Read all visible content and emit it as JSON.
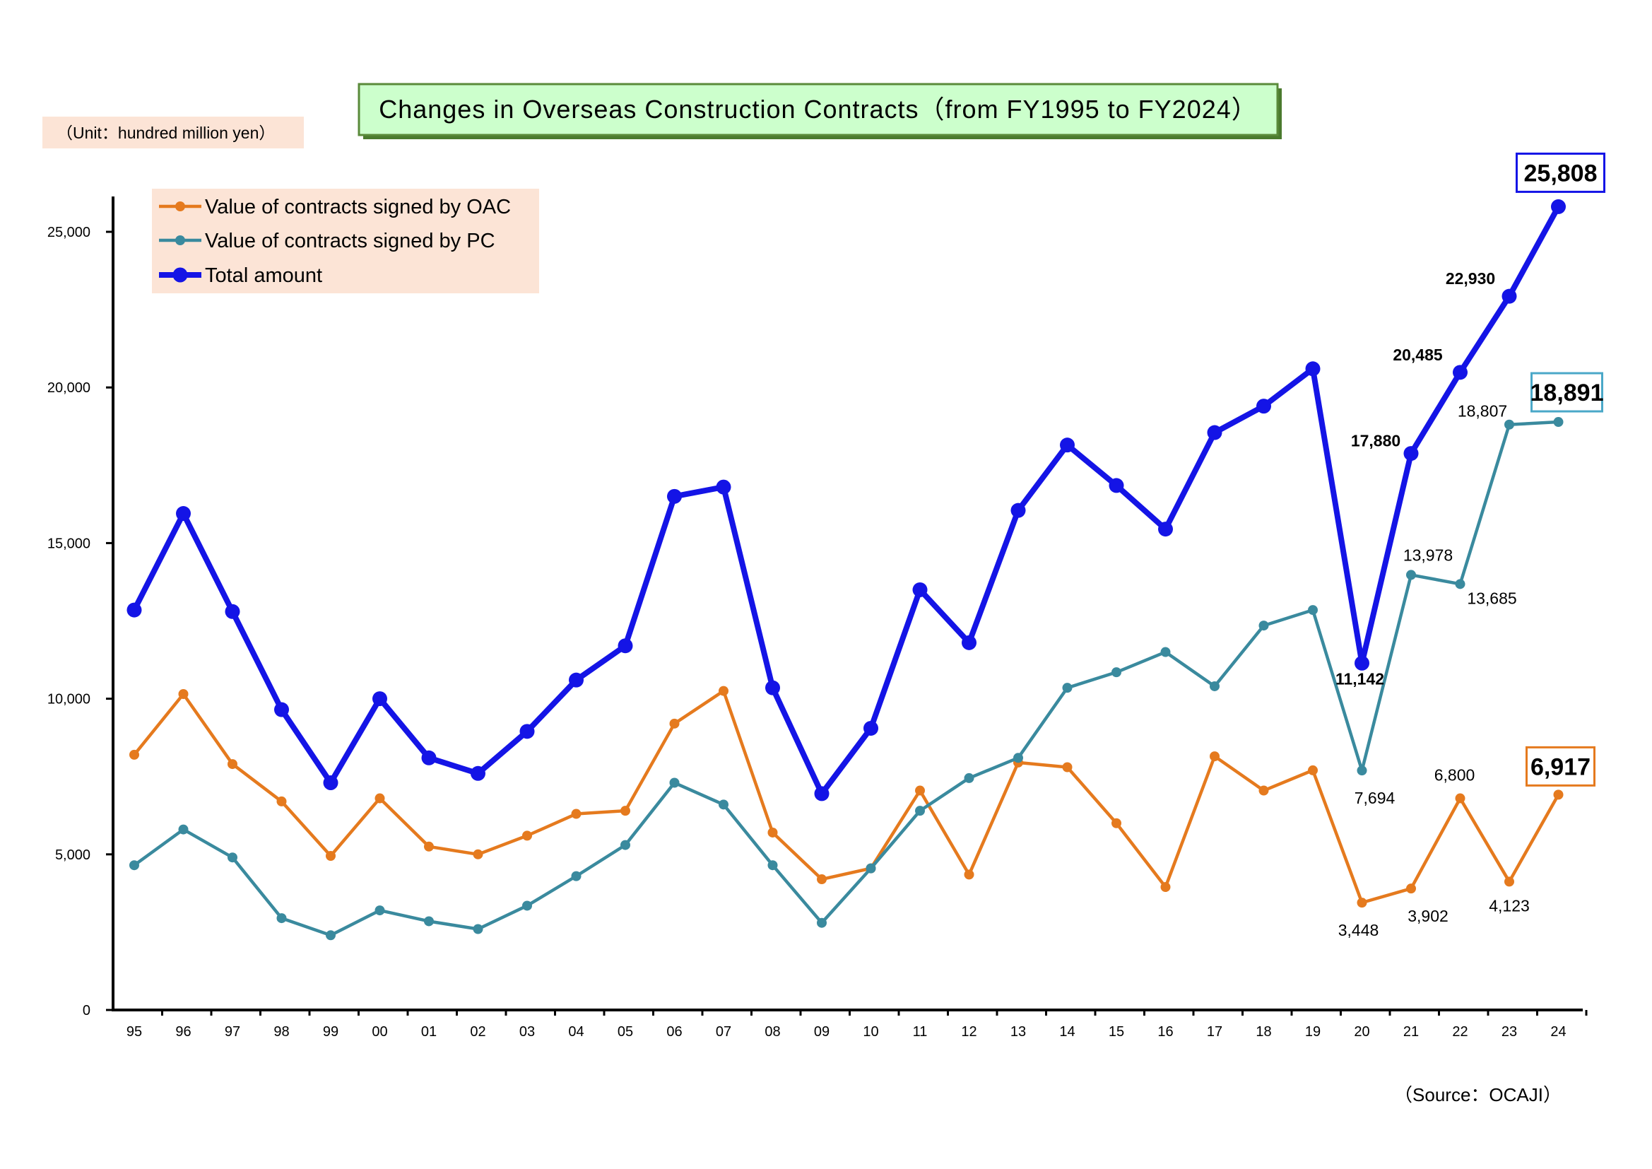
{
  "chart_data": {
    "type": "line",
    "title": "Changes in Overseas Construction Contracts（from FY1995 to FY2024）",
    "unit": "（Unit：hundred million yen）",
    "source": "（Source：OCAJI）",
    "xlabel": "",
    "ylabel": "",
    "ylim": [
      0,
      25000
    ],
    "yticks": [
      "0",
      "5,000",
      "10,000",
      "15,000",
      "20,000",
      "25,000"
    ],
    "categories": [
      "95",
      "96",
      "97",
      "98",
      "99",
      "00",
      "01",
      "02",
      "03",
      "04",
      "05",
      "06",
      "07",
      "08",
      "09",
      "10",
      "11",
      "12",
      "13",
      "14",
      "15",
      "16",
      "17",
      "18",
      "19",
      "20",
      "21",
      "22",
      "23",
      "24"
    ],
    "legend_position": "top-left",
    "grid": false,
    "series": [
      {
        "name": "Value of contracts signed by OAC",
        "color": "#E57A1E",
        "values": [
          8200,
          10150,
          7900,
          6700,
          4950,
          6800,
          5250,
          5000,
          5600,
          6300,
          6400,
          9200,
          10250,
          5700,
          4200,
          4550,
          7050,
          4350,
          7950,
          7800,
          6000,
          3950,
          8150,
          7050,
          7700,
          3448,
          3902,
          6800,
          4123,
          6917
        ]
      },
      {
        "name": "Value of contracts signed by PC",
        "color": "#3A8A9E",
        "values": [
          4650,
          5800,
          4900,
          2950,
          2400,
          3200,
          2850,
          2600,
          3350,
          4300,
          5300,
          7300,
          6600,
          4650,
          2800,
          4550,
          6400,
          7450,
          8100,
          10350,
          10850,
          11500,
          10400,
          12350,
          12850,
          7694,
          13978,
          13685,
          18807,
          18891
        ]
      },
      {
        "name": "Total amount",
        "color": "#1414E6",
        "values": [
          12850,
          15950,
          12800,
          9650,
          7300,
          10000,
          8100,
          7600,
          8950,
          10600,
          11700,
          16500,
          16800,
          10350,
          6950,
          9050,
          13500,
          11800,
          16050,
          18150,
          16850,
          15450,
          18550,
          19400,
          20600,
          11142,
          17880,
          20485,
          22930,
          25808
        ]
      }
    ],
    "annotations": {
      "oac": [
        {
          "index": 25,
          "text": "3,448"
        },
        {
          "index": 26,
          "text": "3,902"
        },
        {
          "index": 27,
          "text": "6,800"
        },
        {
          "index": 28,
          "text": "4,123"
        }
      ],
      "pc": [
        {
          "index": 25,
          "text": "7,694"
        },
        {
          "index": 26,
          "text": "13,978"
        },
        {
          "index": 27,
          "text": "13,685"
        },
        {
          "index": 28,
          "text": "18,807"
        }
      ],
      "total": [
        {
          "index": 25,
          "text": "11,142"
        },
        {
          "index": 26,
          "text": "17,880"
        },
        {
          "index": 27,
          "text": "20,485"
        },
        {
          "index": 28,
          "text": "22,930"
        }
      ],
      "callouts": [
        {
          "series": 2,
          "text": "25,808",
          "border": "#1414E6"
        },
        {
          "series": 1,
          "text": "18,891",
          "border": "#4AA8C8"
        },
        {
          "series": 0,
          "text": "6,917",
          "border": "#E57A1E"
        }
      ]
    }
  }
}
